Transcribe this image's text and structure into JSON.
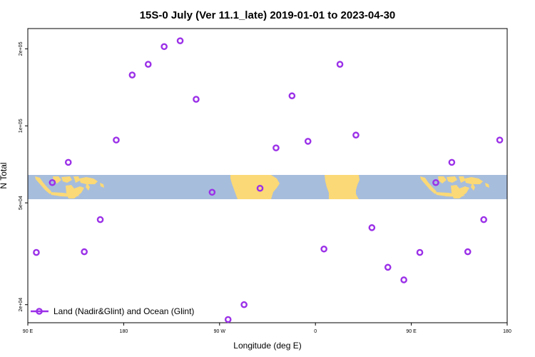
{
  "chart_data": {
    "type": "scatter",
    "title": "15S-0 July (Ver 11.1_late)   2019-01-01 to 2023-04-30",
    "xlabel": "Longitude (deg E)",
    "ylabel": "N Total",
    "x_scale": "linear",
    "y_scale": "log",
    "xlim": [
      90,
      540
    ],
    "ylim": [
      17000,
      240000
    ],
    "x_ticks": [
      {
        "value": 90,
        "label": "90 E"
      },
      {
        "value": 180,
        "label": "180"
      },
      {
        "value": 270,
        "label": "90 W"
      },
      {
        "value": 360,
        "label": "0"
      },
      {
        "value": 450,
        "label": "90 E"
      },
      {
        "value": 540,
        "label": "180"
      }
    ],
    "y_ticks": [
      {
        "value": 20000,
        "label": "2e+04"
      },
      {
        "value": 50000,
        "label": "5e+04"
      },
      {
        "value": 100000,
        "label": "1e+05"
      },
      {
        "value": 200000,
        "label": "2e+05"
      }
    ],
    "grid": false,
    "legend_position": "bottom-left",
    "background_map": "world land/ocean strip, 15S to 0 latitude",
    "colors": {
      "series": "#9b30e8",
      "ocean": "#a7bddc",
      "land": "#fbd976"
    },
    "series": [
      {
        "name": "Land (Nadir&Glint) and Ocean (Glint)",
        "marker": "open-circle",
        "points": [
          {
            "x": 98,
            "y": 32000
          },
          {
            "x": 113,
            "y": 60000
          },
          {
            "x": 128,
            "y": 72000
          },
          {
            "x": 143,
            "y": 32200
          },
          {
            "x": 158,
            "y": 43000
          },
          {
            "x": 173,
            "y": 88000
          },
          {
            "x": 188,
            "y": 158000
          },
          {
            "x": 203,
            "y": 174000
          },
          {
            "x": 218,
            "y": 204000
          },
          {
            "x": 233,
            "y": 215000
          },
          {
            "x": 248,
            "y": 127000
          },
          {
            "x": 263,
            "y": 55000
          },
          {
            "x": 278,
            "y": 17500
          },
          {
            "x": 293,
            "y": 20000
          },
          {
            "x": 308,
            "y": 57000
          },
          {
            "x": 323,
            "y": 82000
          },
          {
            "x": 338,
            "y": 131000
          },
          {
            "x": 353,
            "y": 87000
          },
          {
            "x": 368,
            "y": 33000
          },
          {
            "x": 383,
            "y": 174000
          },
          {
            "x": 398,
            "y": 92000
          },
          {
            "x": 413,
            "y": 40000
          },
          {
            "x": 428,
            "y": 28000
          },
          {
            "x": 443,
            "y": 25000
          },
          {
            "x": 458,
            "y": 32000
          },
          {
            "x": 473,
            "y": 60000
          },
          {
            "x": 488,
            "y": 72000
          },
          {
            "x": 503,
            "y": 32200
          },
          {
            "x": 518,
            "y": 43000
          },
          {
            "x": 533,
            "y": 88000
          }
        ]
      }
    ]
  }
}
